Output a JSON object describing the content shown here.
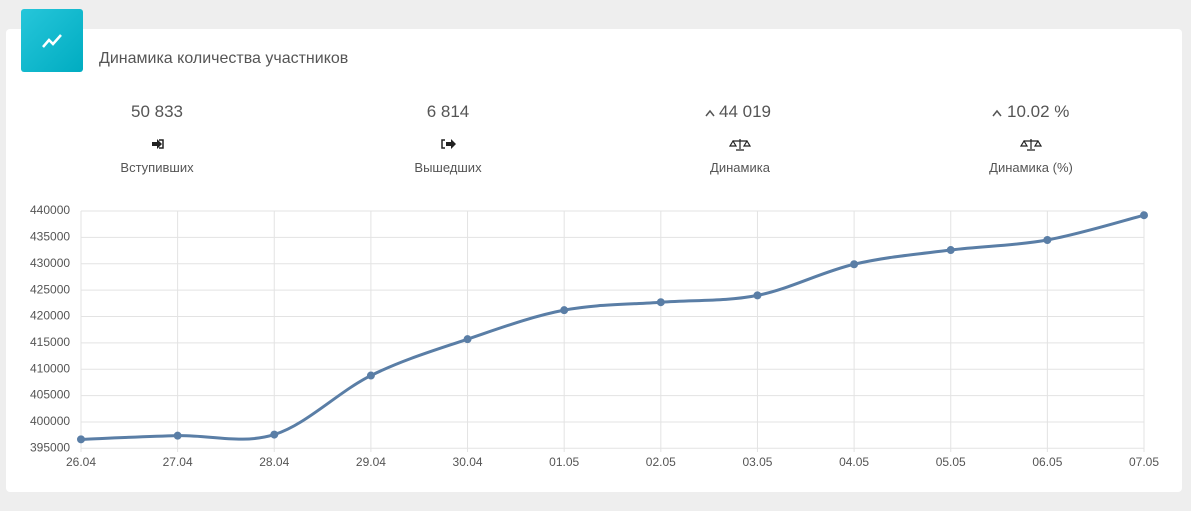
{
  "header": {
    "title": "Динамика количества участников"
  },
  "stats": [
    {
      "value": "50 833",
      "label": "Вступивших"
    },
    {
      "value": "6 814",
      "label": "Вышедших"
    },
    {
      "value": "44 019",
      "label": "Динамика"
    },
    {
      "value": "10.02 %",
      "label": "Динамика (%)"
    }
  ],
  "chart_data": {
    "type": "line",
    "categories": [
      "26.04",
      "27.04",
      "28.04",
      "29.04",
      "30.04",
      "01.05",
      "02.05",
      "03.05",
      "04.05",
      "05.05",
      "06.05",
      "07.05"
    ],
    "values": [
      396700,
      397400,
      397600,
      408800,
      415700,
      421200,
      422700,
      424000,
      429900,
      432600,
      434500,
      439200
    ],
    "color": "#5a7ea6",
    "ylim": [
      394300,
      440000
    ],
    "yticks": [
      395000,
      400000,
      405000,
      410000,
      415000,
      420000,
      425000,
      430000,
      435000,
      440000
    ],
    "grid": true
  }
}
